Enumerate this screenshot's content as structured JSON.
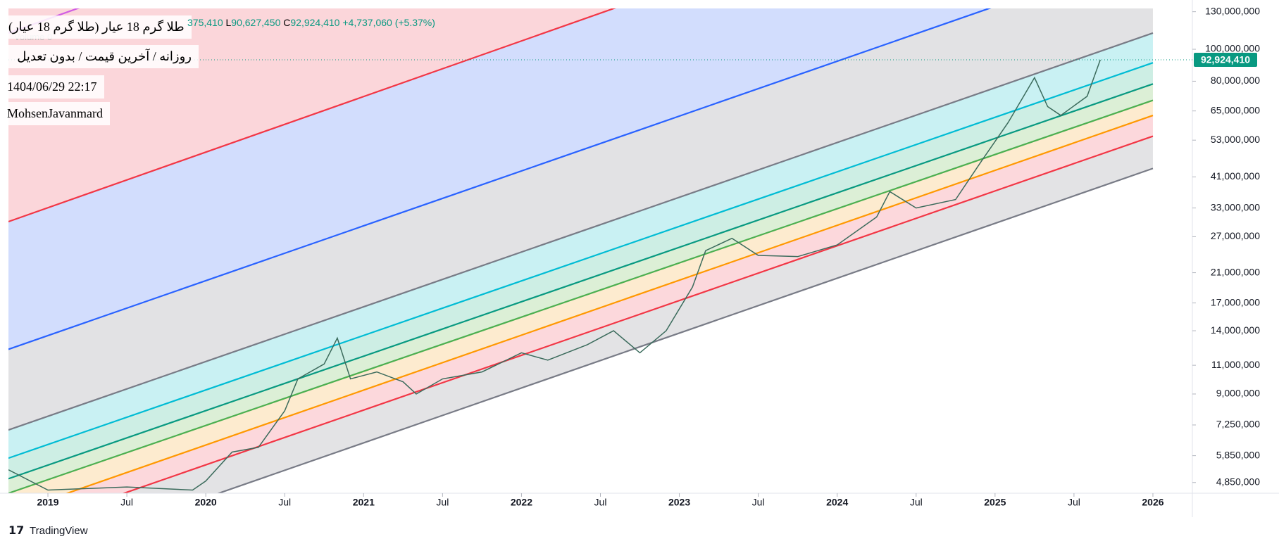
{
  "header": {
    "title": "طلا گرم 18 عیار (طلا گرم 18 عیار)",
    "subtitle": "روزانه / آخرین قیمت / بدون تعدیل",
    "timestamp": "1404/06/29 22:17",
    "author": "MohsenJavanmard",
    "volume": "Volume 0",
    "ohlc": [
      "375,410",
      "L",
      "90,627,450",
      "C",
      "92,924,410",
      "+4,737,060 (+5.37%)"
    ]
  },
  "footer": {
    "logo": "TradingView"
  },
  "chart_data": {
    "type": "line",
    "log_scale": true,
    "grid": false,
    "xlim": [
      "2018-10",
      "2026-04"
    ],
    "xticks": [
      {
        "value": "2019-01",
        "label": "2019"
      },
      {
        "value": "2019-07",
        "label": "Jul"
      },
      {
        "value": "2020-01",
        "label": "2020"
      },
      {
        "value": "2020-07",
        "label": "Jul"
      },
      {
        "value": "2021-01",
        "label": "2021"
      },
      {
        "value": "2021-07",
        "label": "Jul"
      },
      {
        "value": "2022-01",
        "label": "2022"
      },
      {
        "value": "2022-07",
        "label": "Jul"
      },
      {
        "value": "2023-01",
        "label": "2023"
      },
      {
        "value": "2023-07",
        "label": "Jul"
      },
      {
        "value": "2024-01",
        "label": "2024"
      },
      {
        "value": "2024-07",
        "label": "Jul"
      },
      {
        "value": "2025-01",
        "label": "2025"
      },
      {
        "value": "2025-07",
        "label": "Jul"
      },
      {
        "value": "2026-01",
        "label": "2026"
      }
    ],
    "ylim": [
      4500000,
      133000000
    ],
    "yticks": [
      {
        "value": 4850000,
        "label": "4,850,000"
      },
      {
        "value": 5850000,
        "label": "5,850,000"
      },
      {
        "value": 7250000,
        "label": "7,250,000"
      },
      {
        "value": 9000000,
        "label": "9,000,000"
      },
      {
        "value": 11000000,
        "label": "11,000,000"
      },
      {
        "value": 14000000,
        "label": "14,000,000"
      },
      {
        "value": 17000000,
        "label": "17,000,000"
      },
      {
        "value": 21000000,
        "label": "21,000,000"
      },
      {
        "value": 27000000,
        "label": "27,000,000"
      },
      {
        "value": 33000000,
        "label": "33,000,000"
      },
      {
        "value": 41000000,
        "label": "41,000,000"
      },
      {
        "value": 53000000,
        "label": "53,000,000"
      },
      {
        "value": 65000000,
        "label": "65,000,000"
      },
      {
        "value": 80000000,
        "label": "80,000,000"
      },
      {
        "value": 100000000,
        "label": "100,000,000"
      },
      {
        "value": 130000000,
        "label": "130,000,000"
      }
    ],
    "price": {
      "color": "#3b6b5c",
      "x": [
        "2018-10",
        "2019-01",
        "2019-07",
        "2019-12",
        "2020-01",
        "2020-03",
        "2020-05",
        "2020-07",
        "2020-08",
        "2020-10",
        "2020-11",
        "2020-12",
        "2021-02",
        "2021-04",
        "2021-05",
        "2021-07",
        "2021-10",
        "2022-01",
        "2022-03",
        "2022-06",
        "2022-08",
        "2022-10",
        "2022-12",
        "2023-02",
        "2023-03",
        "2023-05",
        "2023-07",
        "2023-10",
        "2024-01",
        "2024-04",
        "2024-05",
        "2024-07",
        "2024-10",
        "2024-12",
        "2025-02",
        "2025-04",
        "2025-05",
        "2025-06",
        "2025-08",
        "2025-09"
      ],
      "values": [
        5300000,
        4600000,
        4700000,
        4600000,
        4900000,
        6000000,
        6200000,
        8000000,
        10000000,
        11100000,
        13300000,
        10000000,
        10500000,
        9800000,
        9000000,
        10000000,
        10500000,
        12000000,
        11400000,
        12700000,
        14000000,
        12000000,
        14000000,
        19000000,
        24500000,
        26700000,
        23700000,
        23500000,
        25500000,
        31000000,
        37000000,
        33000000,
        35000000,
        46000000,
        60000000,
        82000000,
        67000000,
        63000000,
        72000000,
        92924410
      ]
    },
    "last_price": {
      "value": 92924410,
      "label": "92,924,410",
      "color": "#089981"
    },
    "channel": {
      "lines": [
        {
          "color": "#d05ce3",
          "x": [
            "2018-10",
            "2026-01"
          ],
          "values": [
            112000000,
            1930000000
          ]
        },
        {
          "color": "#f23645",
          "x": [
            "2018-10",
            "2026-01"
          ],
          "values": [
            30000000,
            501000000
          ]
        },
        {
          "color": "#2962ff",
          "x": [
            "2018-10",
            "2026-01"
          ],
          "values": [
            12300000,
            198000000
          ]
        },
        {
          "color": "#787b86",
          "x": [
            "2018-10",
            "2026-01"
          ],
          "values": [
            7000000,
            112000000
          ]
        },
        {
          "color": "#00bcd4",
          "x": [
            "2018-10",
            "2026-01"
          ],
          "values": [
            5750000,
            91000000
          ]
        },
        {
          "color": "#089981",
          "x": [
            "2018-10",
            "2026-01"
          ],
          "values": [
            4980000,
            78500000
          ]
        },
        {
          "color": "#4caf50",
          "x": [
            "2018-10",
            "2026-01"
          ],
          "values": [
            4500000,
            70000000
          ]
        },
        {
          "color": "#ff9800",
          "x": [
            "2018-10",
            "2026-01"
          ],
          "values": [
            3900000,
            63000000
          ]
        },
        {
          "color": "#f23645",
          "x": [
            "2018-10",
            "2026-01"
          ],
          "values": [
            3400000,
            54500000
          ]
        },
        {
          "color": "#787b86",
          "x": [
            "2018-10",
            "2026-01"
          ],
          "values": [
            2700000,
            43500000
          ]
        }
      ],
      "fills": [
        "#fbd6da",
        "#fbd6da",
        "#d2ddfd",
        "#e2e2e4",
        "#c9f1f3",
        "#cdeee4",
        "#dcefd6",
        "#fdebcf",
        "#fcd8dc",
        "#e3e3e5"
      ]
    }
  }
}
